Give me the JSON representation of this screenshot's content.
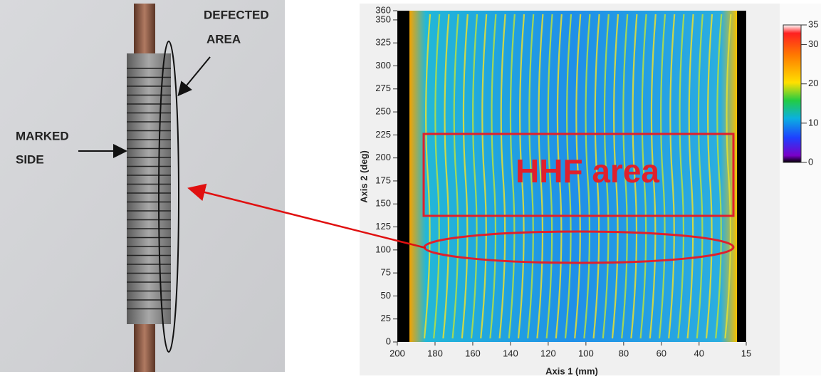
{
  "photo": {
    "defect_label": [
      "DEFECTED",
      "AREA"
    ],
    "marked_label": [
      "MARKED",
      "SIDE"
    ]
  },
  "heatmap": {
    "annotation": "HHF area",
    "x_axis": {
      "label": "Axis 1 (mm)",
      "lim": [
        200,
        15
      ],
      "ticks": [
        200,
        180,
        160,
        140,
        120,
        100,
        80,
        60,
        40,
        15
      ]
    },
    "y_axis": {
      "label": "Axis 2 (deg)",
      "lim": [
        0,
        360
      ],
      "ticks": [
        0,
        25,
        50,
        75,
        100,
        125,
        150,
        175,
        200,
        225,
        250,
        275,
        300,
        325,
        350,
        360
      ]
    },
    "colorbar": {
      "lim": [
        0,
        35
      ],
      "ticks": [
        0,
        10,
        20,
        30,
        35
      ]
    }
  }
}
